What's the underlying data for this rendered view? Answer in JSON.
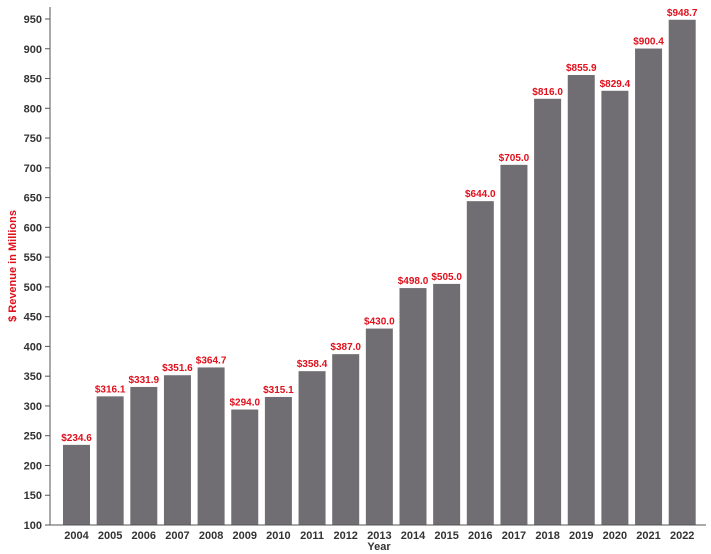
{
  "chart_data": {
    "type": "bar",
    "categories": [
      "2004",
      "2005",
      "2006",
      "2007",
      "2008",
      "2009",
      "2010",
      "2011",
      "2012",
      "2013",
      "2014",
      "2015",
      "2016",
      "2017",
      "2018",
      "2019",
      "2020",
      "2021",
      "2022"
    ],
    "values": [
      234.6,
      316.1,
      331.9,
      351.6,
      364.7,
      294.0,
      315.1,
      358.4,
      387.0,
      430.0,
      498.0,
      505.0,
      644.0,
      705.0,
      816.0,
      855.9,
      829.4,
      900.4,
      948.7
    ],
    "value_labels": [
      "$234.6",
      "$316.1",
      "$331.9",
      "$351.6",
      "$364.7",
      "$294.0",
      "$315.1",
      "$358.4",
      "$387.0",
      "$430.0",
      "$498.0",
      "$505.0",
      "$644.0",
      "$705.0",
      "$816.0",
      "$855.9",
      "$829.4",
      "$900.4",
      "$948.7"
    ],
    "title": "",
    "xlabel": "Year",
    "ylabel": "$ Revenue in Millions",
    "ylim": [
      100,
      950
    ],
    "yticks": [
      100,
      150,
      200,
      250,
      300,
      350,
      400,
      450,
      500,
      550,
      600,
      650,
      700,
      750,
      800,
      850,
      900,
      950
    ],
    "grid": false,
    "legend": "none",
    "colors": {
      "bar": "#706e72",
      "value_label": "#e0101c",
      "ylabel": "#e0101c",
      "xlabel": "#333333",
      "axis": "#555555",
      "tick_text": "#333333"
    }
  }
}
